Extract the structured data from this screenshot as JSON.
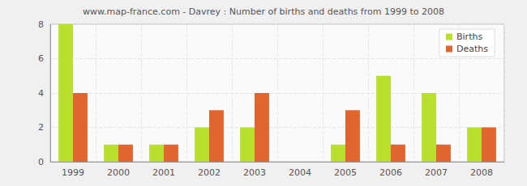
{
  "chart_data": {
    "type": "bar",
    "title": "www.map-france.com - Davrey : Number of births and deaths from 1999 to 2008",
    "categories": [
      "1999",
      "2000",
      "2001",
      "2002",
      "2003",
      "2004",
      "2005",
      "2006",
      "2007",
      "2008"
    ],
    "series": [
      {
        "name": "Births",
        "color": "#b8e02c",
        "values": [
          8,
          1,
          1,
          2,
          2,
          0,
          1,
          5,
          4,
          2
        ]
      },
      {
        "name": "Deaths",
        "color": "#e0652f",
        "values": [
          4,
          1,
          1,
          3,
          4,
          0,
          3,
          1,
          1,
          2
        ]
      }
    ],
    "ylim": [
      0,
      8
    ],
    "yticks": [
      0,
      2,
      4,
      6,
      8
    ],
    "grid": true,
    "legend": "upper right"
  }
}
